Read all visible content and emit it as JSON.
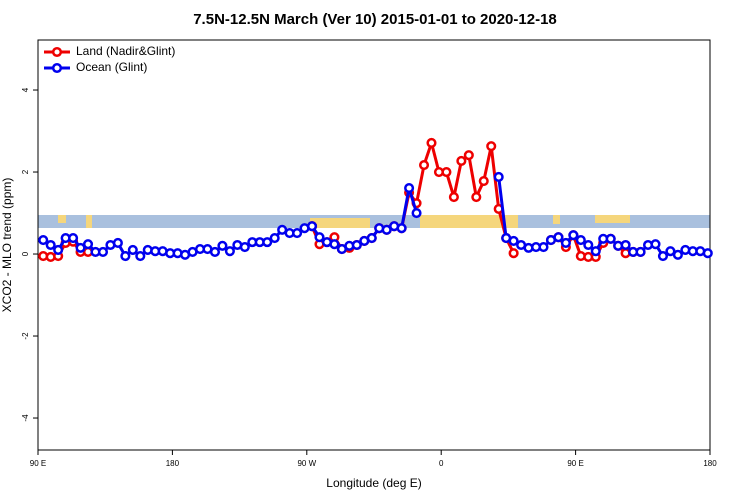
{
  "chart_data": {
    "type": "line",
    "title": "7.5N-12.5N March (Ver 10)   2015-01-01 to 2020-12-18",
    "x_label": "Longitude (deg E)",
    "y_label": "XCO2 - MLO trend (ppm)",
    "xlim": [
      90,
      540
    ],
    "xticks": [
      {
        "value": 90,
        "label": "90 E"
      },
      {
        "value": 180,
        "label": "180"
      },
      {
        "value": 270,
        "label": "90 W"
      },
      {
        "value": 360,
        "label": "0"
      },
      {
        "value": 450,
        "label": "90 E"
      },
      {
        "value": 540,
        "label": "180"
      }
    ],
    "ylim": [
      -4.78,
      5.22
    ],
    "yticks": [
      -4,
      -2,
      0,
      2,
      4
    ],
    "legend": "top-left",
    "x": [
      93.5,
      98.5,
      103.5,
      108.5,
      113.5,
      118.5,
      123.5,
      128.5,
      133.5,
      138.5,
      143.5,
      148.5,
      153.5,
      158.5,
      163.5,
      168.5,
      173.5,
      178.5,
      183.5,
      188.5,
      193.5,
      198.5,
      203.5,
      208.5,
      213.5,
      218.5,
      223.5,
      228.5,
      233.5,
      238.5,
      243.5,
      248.5,
      253.5,
      258.5,
      263.5,
      268.5,
      273.5,
      278.5,
      283.5,
      288.5,
      293.5,
      298.5,
      303.5,
      308.5,
      313.5,
      318.5,
      323.5,
      328.5,
      333.5,
      338.5,
      343.5,
      348.5,
      353.5,
      358.5,
      363.5,
      368.5,
      373.5,
      378.5,
      383.5,
      388.5,
      393.5,
      398.5,
      403.5,
      408.5,
      413.5,
      418.5,
      423.5,
      428.5,
      433.5,
      438.5,
      443.5,
      448.5,
      453.5,
      458.5,
      463.5,
      468.5,
      473.5,
      478.5,
      483.5,
      488.5,
      493.5,
      498.5,
      503.5,
      508.5,
      513.5,
      518.5,
      523.5,
      528.5,
      533.5,
      538.5
    ],
    "series": [
      {
        "name": "Land (Nadir&Glint)",
        "color": "#ee0000",
        "values": [
          -0.05,
          -0.07,
          -0.05,
          0.27,
          0.3,
          0.05,
          0.05,
          null,
          null,
          null,
          null,
          null,
          null,
          null,
          null,
          null,
          null,
          null,
          null,
          null,
          null,
          null,
          null,
          null,
          null,
          null,
          null,
          null,
          null,
          null,
          null,
          null,
          null,
          null,
          null,
          null,
          0.68,
          0.24,
          0.29,
          0.41,
          0.12,
          0.15,
          0.22,
          0.32,
          0.39,
          0.63,
          0.59,
          0.68,
          0.63,
          1.5,
          1.24,
          2.17,
          2.71,
          2.0,
          2.0,
          1.39,
          2.27,
          2.41,
          1.39,
          1.78,
          2.63,
          1.1,
          0.39,
          0.02,
          null,
          null,
          null,
          null,
          0.34,
          0.41,
          0.17,
          0.46,
          -0.05,
          -0.07,
          -0.07,
          0.27,
          0.37,
          0.2,
          0.02,
          0.05,
          0.05,
          null,
          null,
          null,
          null,
          null,
          null,
          null,
          null,
          null
        ]
      },
      {
        "name": "Ocean (Glint)",
        "color": "#0000ee",
        "values": [
          0.34,
          0.22,
          0.1,
          0.39,
          0.39,
          0.15,
          0.24,
          0.05,
          0.05,
          0.22,
          0.27,
          -0.05,
          0.1,
          -0.05,
          0.1,
          0.07,
          0.07,
          0.02,
          0.02,
          -0.02,
          0.05,
          0.12,
          0.12,
          0.05,
          0.2,
          0.07,
          0.22,
          0.17,
          0.29,
          0.29,
          0.29,
          0.39,
          0.59,
          0.51,
          0.51,
          0.63,
          0.68,
          0.41,
          0.29,
          0.24,
          0.12,
          0.2,
          0.22,
          0.32,
          0.39,
          0.63,
          0.59,
          0.68,
          0.63,
          1.61,
          1.0,
          null,
          null,
          null,
          null,
          null,
          null,
          null,
          null,
          null,
          null,
          1.88,
          0.39,
          0.32,
          0.22,
          0.15,
          0.17,
          0.17,
          0.34,
          0.41,
          0.27,
          0.46,
          0.34,
          0.22,
          0.07,
          0.37,
          0.37,
          0.2,
          0.22,
          0.05,
          0.05,
          0.22,
          0.24,
          -0.05,
          0.07,
          -0.02,
          0.1,
          0.07,
          0.07,
          0.02
        ]
      }
    ]
  }
}
